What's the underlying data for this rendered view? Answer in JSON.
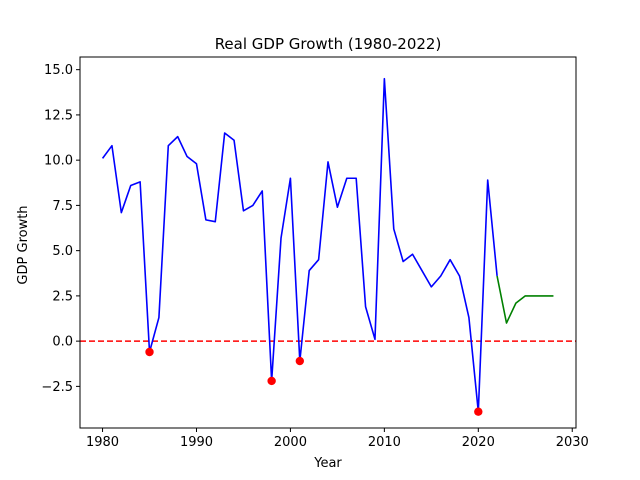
{
  "chart_data": {
    "type": "line",
    "title": "Real GDP Growth (1980-2022)",
    "xlabel": "Year",
    "ylabel": "GDP Growth",
    "xlim": [
      1977.6,
      2030.4
    ],
    "ylim": [
      -4.8,
      15.7
    ],
    "xticks": [
      1980,
      1990,
      2000,
      2010,
      2020,
      2030
    ],
    "yticks": [
      -2.5,
      0.0,
      2.5,
      5.0,
      7.5,
      10.0,
      12.5,
      15.0
    ],
    "xtick_labels": [
      "1980",
      "1990",
      "2000",
      "2010",
      "2020",
      "2030"
    ],
    "ytick_labels": [
      "−2.5",
      "0.0",
      "2.5",
      "5.0",
      "7.5",
      "10.0",
      "12.5",
      "15.0"
    ],
    "grid": false,
    "series": [
      {
        "kind": "line",
        "color": "#0000ff",
        "x": [
          1980,
          1981,
          1982,
          1983,
          1984,
          1985,
          1986,
          1987,
          1988,
          1989,
          1990,
          1991,
          1992,
          1993,
          1994,
          1995,
          1996,
          1997,
          1998,
          1999,
          2000,
          2001,
          2002,
          2003,
          2004,
          2005,
          2006,
          2007,
          2008,
          2009,
          2010,
          2011,
          2012,
          2013,
          2014,
          2015,
          2016,
          2017,
          2018,
          2019,
          2020,
          2021,
          2022
        ],
        "y": [
          10.1,
          10.8,
          7.1,
          8.6,
          8.8,
          -0.6,
          1.3,
          10.8,
          11.3,
          10.2,
          9.8,
          6.7,
          6.6,
          11.5,
          11.1,
          7.2,
          7.5,
          8.3,
          -2.2,
          5.7,
          9.0,
          -1.1,
          3.9,
          4.5,
          9.9,
          7.4,
          9.0,
          9.0,
          1.9,
          0.1,
          14.5,
          6.2,
          4.4,
          4.8,
          3.9,
          3.0,
          3.6,
          4.5,
          3.6,
          1.3,
          -3.9,
          8.9,
          3.6
        ]
      },
      {
        "kind": "line",
        "color": "#008000",
        "x": [
          2022,
          2023,
          2024,
          2025,
          2026,
          2027,
          2028
        ],
        "y": [
          3.6,
          1.0,
          2.1,
          2.5,
          2.5,
          2.5,
          2.5
        ]
      },
      {
        "kind": "scatter",
        "color": "#ff0000",
        "x": [
          1985,
          1998,
          2001,
          2020
        ],
        "y": [
          -0.6,
          -2.2,
          -1.1,
          -3.9
        ]
      }
    ],
    "reference_line": {
      "y": 0,
      "color": "#ff0000",
      "style": "dashed"
    }
  }
}
